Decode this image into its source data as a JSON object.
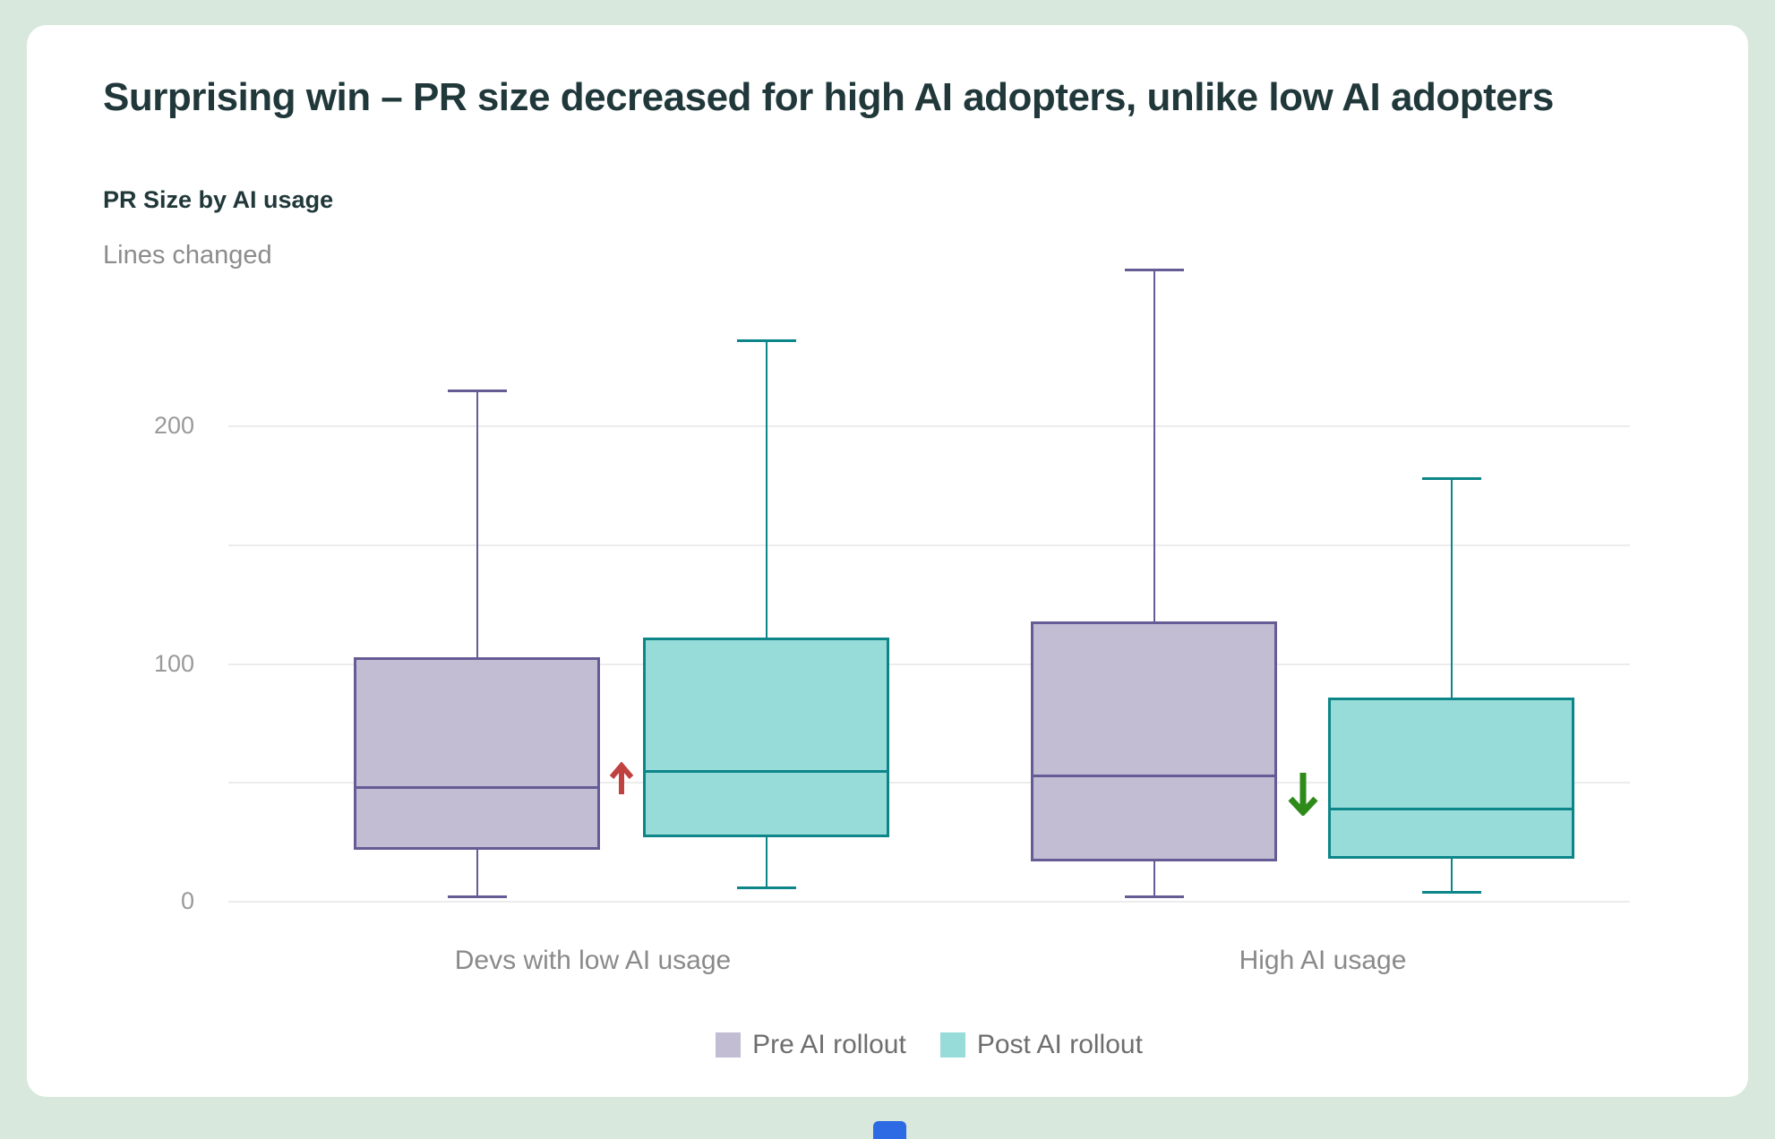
{
  "page": {
    "background_color": "#d8e8dd",
    "card_color": "#ffffff",
    "bottom_strip_color": "#2c6be4"
  },
  "headline": "Surprising win – PR size decreased for high AI adopters, unlike low AI adopters",
  "chart": {
    "title": "PR Size by AI usage",
    "y_axis_label": "Lines changed"
  },
  "legend": {
    "items": [
      {
        "label": "Pre AI rollout",
        "color": "#c2bdd3"
      },
      {
        "label": "Post AI rollout",
        "color": "#98dcd9"
      }
    ]
  },
  "chart_data": {
    "type": "boxplot",
    "title": "PR Size by AI usage",
    "ylabel": "Lines changed",
    "ylim": [
      0,
      280
    ],
    "grid": true,
    "gridlines": [
      0,
      50,
      100,
      150,
      200
    ],
    "yticks_labeled": [
      "0",
      "100",
      "200"
    ],
    "ytick_values": [
      0,
      100,
      200
    ],
    "categories": [
      "Devs with low AI usage",
      "High AI usage"
    ],
    "series": [
      {
        "name": "Pre AI rollout",
        "fill": "#c2bdd3",
        "stroke": "#665c95",
        "boxes": [
          {
            "category": "Devs with low AI usage",
            "min": 2,
            "q1": 22,
            "median": 48,
            "q3": 103,
            "max": 215
          },
          {
            "category": "High AI usage",
            "min": 2,
            "q1": 17,
            "median": 53,
            "q3": 118,
            "max": 266
          }
        ]
      },
      {
        "name": "Post AI rollout",
        "fill": "#98dcd9",
        "stroke": "#0d8689",
        "boxes": [
          {
            "category": "Devs with low AI usage",
            "min": 6,
            "q1": 27,
            "median": 55,
            "q3": 111,
            "max": 236
          },
          {
            "category": "High AI usage",
            "min": 4,
            "q1": 18,
            "median": 39,
            "q3": 86,
            "max": 178
          }
        ]
      }
    ],
    "annotations": [
      {
        "type": "arrow",
        "direction": "up",
        "color": "#bf4240",
        "category": "Devs with low AI usage"
      },
      {
        "type": "arrow",
        "direction": "down",
        "color": "#2e8b1a",
        "category": "High AI usage"
      }
    ],
    "legend_position": "bottom"
  }
}
